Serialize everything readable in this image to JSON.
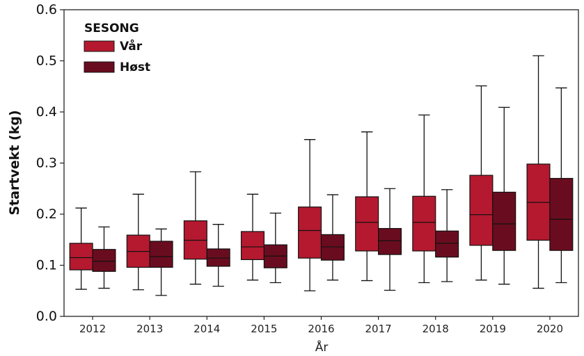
{
  "chart_data": {
    "type": "boxplot",
    "title": "",
    "xlabel": "År",
    "ylabel": "Startvekt (kg)",
    "ylim": [
      0.0,
      0.6
    ],
    "yticks": [
      "0.0",
      "0.1",
      "0.2",
      "0.3",
      "0.4",
      "0.5",
      "0.6"
    ],
    "yticks_values": [
      0.0,
      0.1,
      0.2,
      0.3,
      0.4,
      0.5,
      0.6
    ],
    "categories": [
      "2012",
      "2013",
      "2014",
      "2015",
      "2016",
      "2017",
      "2018",
      "2019",
      "2020"
    ],
    "legend": {
      "title": "SESONG",
      "position": "top-left"
    },
    "grid": false,
    "series": [
      {
        "name": "Vår",
        "color": "#b5192f",
        "boxes": [
          {
            "whislo": 0.053,
            "q1": 0.091,
            "med": 0.115,
            "q3": 0.143,
            "whishi": 0.212
          },
          {
            "whislo": 0.052,
            "q1": 0.096,
            "med": 0.127,
            "q3": 0.159,
            "whishi": 0.239
          },
          {
            "whislo": 0.063,
            "q1": 0.112,
            "med": 0.149,
            "q3": 0.187,
            "whishi": 0.283
          },
          {
            "whislo": 0.071,
            "q1": 0.111,
            "med": 0.136,
            "q3": 0.166,
            "whishi": 0.239
          },
          {
            "whislo": 0.05,
            "q1": 0.114,
            "med": 0.168,
            "q3": 0.214,
            "whishi": 0.346
          },
          {
            "whislo": 0.07,
            "q1": 0.128,
            "med": 0.184,
            "q3": 0.234,
            "whishi": 0.361
          },
          {
            "whislo": 0.066,
            "q1": 0.128,
            "med": 0.184,
            "q3": 0.235,
            "whishi": 0.394
          },
          {
            "whislo": 0.071,
            "q1": 0.139,
            "med": 0.199,
            "q3": 0.276,
            "whishi": 0.451
          },
          {
            "whislo": 0.055,
            "q1": 0.149,
            "med": 0.223,
            "q3": 0.298,
            "whishi": 0.51
          }
        ]
      },
      {
        "name": "Høst",
        "color": "#6a0c1f",
        "boxes": [
          {
            "whislo": 0.055,
            "q1": 0.088,
            "med": 0.108,
            "q3": 0.131,
            "whishi": 0.175
          },
          {
            "whislo": 0.041,
            "q1": 0.096,
            "med": 0.117,
            "q3": 0.147,
            "whishi": 0.171
          },
          {
            "whislo": 0.059,
            "q1": 0.098,
            "med": 0.114,
            "q3": 0.132,
            "whishi": 0.18
          },
          {
            "whislo": 0.066,
            "q1": 0.095,
            "med": 0.118,
            "q3": 0.14,
            "whishi": 0.202
          },
          {
            "whislo": 0.071,
            "q1": 0.11,
            "med": 0.136,
            "q3": 0.16,
            "whishi": 0.238
          },
          {
            "whislo": 0.051,
            "q1": 0.121,
            "med": 0.148,
            "q3": 0.172,
            "whishi": 0.25
          },
          {
            "whislo": 0.068,
            "q1": 0.116,
            "med": 0.143,
            "q3": 0.167,
            "whishi": 0.248
          },
          {
            "whislo": 0.063,
            "q1": 0.129,
            "med": 0.181,
            "q3": 0.243,
            "whishi": 0.409
          },
          {
            "whislo": 0.066,
            "q1": 0.129,
            "med": 0.19,
            "q3": 0.27,
            "whishi": 0.447
          }
        ]
      }
    ]
  }
}
